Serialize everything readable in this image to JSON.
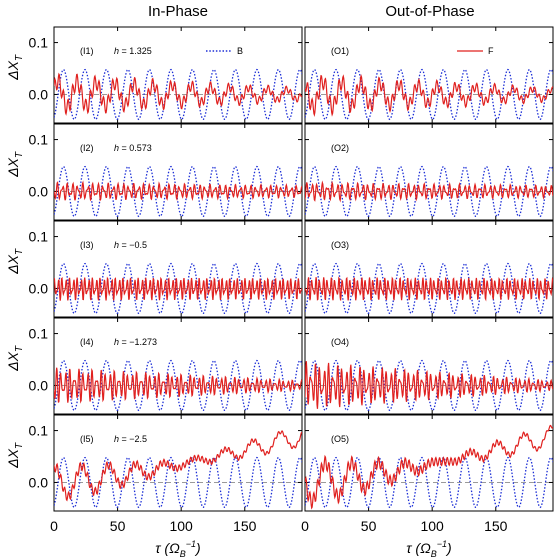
{
  "column_titles": [
    "In-Phase",
    "Out-of-Phase"
  ],
  "y_axis_label": "ΔX_T",
  "x_axis_label": "τ (Ω_B⁻¹)",
  "legend": {
    "b_label": "B",
    "f_label": "F",
    "b_color": "#1d2fd6",
    "f_color": "#e0211f",
    "ref_color": "#9a9a9a"
  },
  "chart_data": {
    "type": "line",
    "layout": "5 rows x 2 columns of small multiples",
    "xlim": [
      0,
      195
    ],
    "ylim": [
      -0.055,
      0.13
    ],
    "xticks": [
      0,
      50,
      100,
      150
    ],
    "yticks": [
      0.0,
      0.1
    ],
    "ytick_labels": [
      "0.0",
      "0.1"
    ],
    "reference_line_y": 0.0,
    "series_common": {
      "B": {
        "style": "dotted",
        "period": 16.9,
        "amplitude": 0.048
      }
    },
    "panels": [
      {
        "label": "(I1)",
        "h_text": "1.325",
        "column": "In-Phase",
        "row": 1,
        "F": {
          "amp_start": 0.035,
          "amp_end": 0.012,
          "carrier_period": 15,
          "fast_period": 3.5,
          "drift_end": 0.0
        }
      },
      {
        "label": "(O1)",
        "h_text": "",
        "column": "Out-of-Phase",
        "row": 1,
        "F": {
          "amp_start": 0.035,
          "amp_end": 0.012,
          "carrier_period": 15,
          "fast_period": 3.5,
          "drift_end": 0.0
        }
      },
      {
        "label": "(I2)",
        "h_text": "0.573",
        "column": "In-Phase",
        "row": 2,
        "F": {
          "amp_start": 0.015,
          "amp_end": 0.01,
          "carrier_period": 4,
          "fast_period": 2.5,
          "drift_end": 0.0
        }
      },
      {
        "label": "(O2)",
        "h_text": "",
        "column": "Out-of-Phase",
        "row": 2,
        "F": {
          "amp_start": 0.015,
          "amp_end": 0.01,
          "carrier_period": 4,
          "fast_period": 2.5,
          "drift_end": 0.0
        }
      },
      {
        "label": "(I3)",
        "h_text": "−0.5",
        "column": "In-Phase",
        "row": 3,
        "F": {
          "amp_start": 0.02,
          "amp_end": 0.018,
          "carrier_period": 3,
          "fast_period": 2.0,
          "drift_end": 0.0
        }
      },
      {
        "label": "(O3)",
        "h_text": "",
        "column": "Out-of-Phase",
        "row": 3,
        "F": {
          "amp_start": 0.02,
          "amp_end": 0.018,
          "carrier_period": 3,
          "fast_period": 2.0,
          "drift_end": 0.0
        }
      },
      {
        "label": "(I4)",
        "h_text": "−1.273",
        "column": "In-Phase",
        "row": 4,
        "F": {
          "amp_start": 0.03,
          "amp_end": 0.008,
          "carrier_period": 3.5,
          "fast_period": 2.5,
          "drift_end": 0.0
        }
      },
      {
        "label": "(O4)",
        "h_text": "",
        "column": "Out-of-Phase",
        "row": 4,
        "F": {
          "amp_start": 0.04,
          "amp_end": 0.008,
          "carrier_period": 3.5,
          "fast_period": 2.5,
          "drift_end": 0.0
        }
      },
      {
        "label": "(I5)",
        "h_text": "−2.5",
        "column": "In-Phase",
        "row": 5,
        "F": {
          "amp_start": 0.02,
          "amp_end": 0.006,
          "carrier_period": 20,
          "fast_period": 3.0,
          "drift_end": 0.09
        }
      },
      {
        "label": "(O5)",
        "h_text": "",
        "column": "Out-of-Phase",
        "row": 5,
        "F": {
          "amp_start": 0.03,
          "amp_end": 0.006,
          "carrier_period": 20,
          "fast_period": 3.0,
          "drift_end": 0.09
        }
      }
    ]
  }
}
